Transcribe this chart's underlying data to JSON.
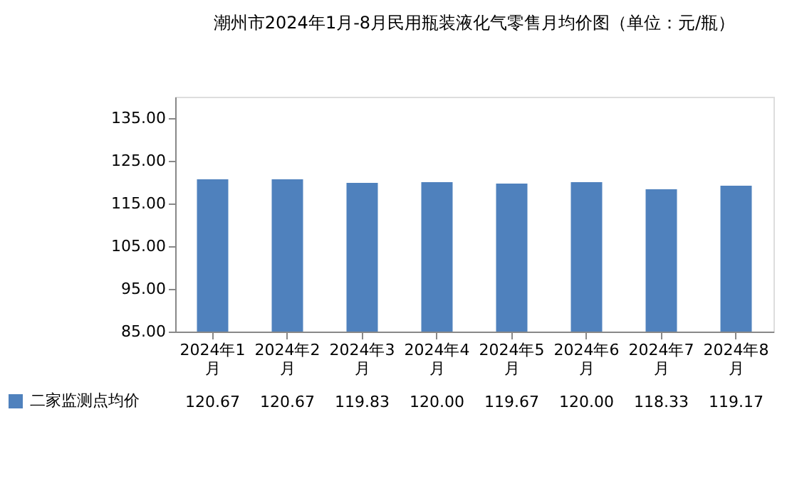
{
  "chart_data": {
    "type": "bar",
    "title": "潮州市2024年1月-8月民用瓶装液化气零售月均价图（单位：元/瓶）",
    "categories": [
      "2024年1月",
      "2024年2月",
      "2024年3月",
      "2024年4月",
      "2024年5月",
      "2024年6月",
      "2024年7月",
      "2024年8月"
    ],
    "series": [
      {
        "name": "二家监测点均价",
        "color": "#4f81bd",
        "values": [
          120.67,
          120.67,
          119.83,
          120.0,
          119.67,
          120.0,
          118.33,
          119.17
        ]
      }
    ],
    "ylim": [
      85,
      140
    ],
    "yticks": [
      {
        "value": 85,
        "label": "85.00"
      },
      {
        "value": 95,
        "label": "95.00"
      },
      {
        "value": 105,
        "label": "105.00"
      },
      {
        "value": 115,
        "label": "115.00"
      },
      {
        "value": 125,
        "label": "125.00"
      },
      {
        "value": 135,
        "label": "135.00"
      }
    ],
    "value_labels": [
      "120.67",
      "120.67",
      "119.83",
      "120.00",
      "119.67",
      "120.00",
      "118.33",
      "119.17"
    ],
    "legend": "bottom left"
  }
}
